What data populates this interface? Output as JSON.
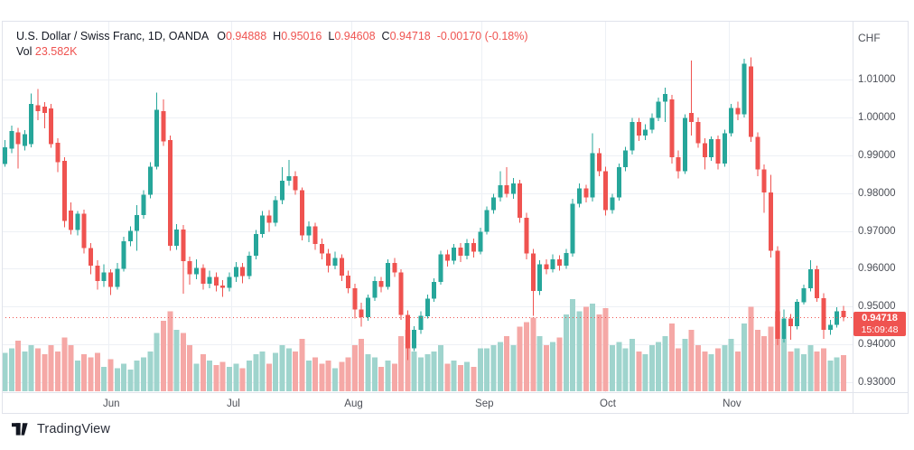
{
  "header": {
    "symbol_line": "U.S. Dollar / Swiss Franc, 1D, OANDA",
    "ohlc": [
      {
        "label": "O",
        "value": "0.94888"
      },
      {
        "label": "H",
        "value": "0.95016"
      },
      {
        "label": "L",
        "value": "0.94608"
      },
      {
        "label": "C",
        "value": "0.94718"
      }
    ],
    "change": "-0.00170 (-0.18%)",
    "vol_label": "Vol",
    "vol_value": "23.582K"
  },
  "price_axis": {
    "currency": "CHF",
    "ticks": [
      "1.01000",
      "1.00000",
      "0.99000",
      "0.98000",
      "0.97000",
      "0.96000",
      "0.95000",
      "0.94000",
      "0.93000"
    ],
    "last_price_label": "0.94718",
    "last_time_label": "15:09:48"
  },
  "time_axis": {
    "months": [
      {
        "label": "Jun",
        "index": 15.7
      },
      {
        "label": "Jul",
        "index": 34.2
      },
      {
        "label": "Aug",
        "index": 52.4
      },
      {
        "label": "Sep",
        "index": 72.2
      },
      {
        "label": "Oct",
        "index": 90.9
      },
      {
        "label": "Nov",
        "index": 109.7
      }
    ]
  },
  "footer": {
    "brand": "TradingView"
  },
  "colors": {
    "up": "#26a69a",
    "down": "#ef5350",
    "vol_up": "#9fd4cd",
    "vol_down": "#f5a8a6",
    "grid": "#edf0f5",
    "border": "#e0e3eb",
    "text": "#131722",
    "axis_text": "#4c4f57",
    "badge_bg": "#ef5350",
    "last_price_line": "#ef5350"
  },
  "chart_data": {
    "type": "candlestick_with_volume",
    "title": "U.S. Dollar / Swiss Franc",
    "interval": "1D",
    "provider": "OANDA",
    "quote_currency": "CHF",
    "ylim": [
      0.93,
      1.01
    ],
    "grid": true,
    "last_close": 0.94718,
    "last_volume_k": 23.582,
    "columns": [
      "open",
      "high",
      "low",
      "close",
      "volume_k"
    ],
    "candles": [
      [
        0.9877,
        0.994,
        0.9869,
        0.9921,
        25
      ],
      [
        0.9917,
        0.9978,
        0.9905,
        0.9964,
        28
      ],
      [
        0.996,
        0.9972,
        0.9865,
        0.9929,
        33
      ],
      [
        0.9924,
        0.9966,
        0.9912,
        0.9955,
        26
      ],
      [
        0.9929,
        1.0063,
        0.9921,
        1.0036,
        30
      ],
      [
        1.0032,
        1.0075,
        0.9993,
        1.0016,
        28
      ],
      [
        1.0028,
        1.004,
        0.9971,
        1.0012,
        24
      ],
      [
        1.0024,
        1.0035,
        0.992,
        0.9929,
        30
      ],
      [
        0.9933,
        0.9945,
        0.9855,
        0.9881,
        26
      ],
      [
        0.9885,
        0.9895,
        0.971,
        0.9726,
        35
      ],
      [
        0.9754,
        0.9775,
        0.969,
        0.9702,
        30
      ],
      [
        0.9702,
        0.9752,
        0.9688,
        0.9745,
        20
      ],
      [
        0.9745,
        0.9756,
        0.964,
        0.9655,
        24
      ],
      [
        0.9655,
        0.9668,
        0.9585,
        0.9608,
        22
      ],
      [
        0.9608,
        0.9622,
        0.9545,
        0.9568,
        25
      ],
      [
        0.9568,
        0.9612,
        0.9552,
        0.959,
        16
      ],
      [
        0.959,
        0.9598,
        0.953,
        0.9552,
        21
      ],
      [
        0.9552,
        0.9615,
        0.9545,
        0.96,
        15
      ],
      [
        0.96,
        0.9685,
        0.9592,
        0.9672,
        18
      ],
      [
        0.9672,
        0.9712,
        0.966,
        0.97,
        14
      ],
      [
        0.97,
        0.9768,
        0.9648,
        0.9742,
        20
      ],
      [
        0.9742,
        0.9808,
        0.9732,
        0.9795,
        22
      ],
      [
        0.9795,
        0.9882,
        0.9786,
        0.987,
        26
      ],
      [
        0.987,
        1.0065,
        0.9862,
        1.002,
        38
      ],
      [
        1.0016,
        1.0048,
        0.9925,
        0.9936,
        46
      ],
      [
        0.994,
        0.9952,
        0.9648,
        0.9661,
        52
      ],
      [
        0.9661,
        0.9718,
        0.965,
        0.9704,
        40
      ],
      [
        0.9704,
        0.9715,
        0.9534,
        0.962,
        38
      ],
      [
        0.962,
        0.9632,
        0.9558,
        0.9585,
        30
      ],
      [
        0.9585,
        0.9625,
        0.9572,
        0.9602,
        18
      ],
      [
        0.9602,
        0.9612,
        0.9545,
        0.956,
        24
      ],
      [
        0.956,
        0.9595,
        0.9548,
        0.9578,
        20
      ],
      [
        0.9578,
        0.959,
        0.954,
        0.9556,
        17
      ],
      [
        0.9556,
        0.957,
        0.9525,
        0.9549,
        19
      ],
      [
        0.9549,
        0.959,
        0.954,
        0.9578,
        16
      ],
      [
        0.9578,
        0.9618,
        0.9565,
        0.9604,
        18
      ],
      [
        0.9604,
        0.9615,
        0.9562,
        0.9581,
        15
      ],
      [
        0.9581,
        0.9645,
        0.9572,
        0.9634,
        20
      ],
      [
        0.9634,
        0.9702,
        0.9625,
        0.9692,
        24
      ],
      [
        0.9692,
        0.9752,
        0.9682,
        0.9741,
        26
      ],
      [
        0.9741,
        0.9755,
        0.9698,
        0.9722,
        18
      ],
      [
        0.9722,
        0.9792,
        0.9712,
        0.9781,
        25
      ],
      [
        0.9781,
        0.9868,
        0.977,
        0.9832,
        30
      ],
      [
        0.9832,
        0.9888,
        0.982,
        0.9845,
        28
      ],
      [
        0.9845,
        0.9858,
        0.9795,
        0.9808,
        26
      ],
      [
        0.9808,
        0.9815,
        0.9675,
        0.9688,
        34
      ],
      [
        0.9688,
        0.9725,
        0.967,
        0.9712,
        20
      ],
      [
        0.9712,
        0.9722,
        0.965,
        0.9665,
        22
      ],
      [
        0.9665,
        0.968,
        0.9625,
        0.964,
        18
      ],
      [
        0.964,
        0.9652,
        0.959,
        0.9608,
        20
      ],
      [
        0.9608,
        0.9645,
        0.9598,
        0.9628,
        15
      ],
      [
        0.9628,
        0.9638,
        0.9568,
        0.9582,
        19
      ],
      [
        0.9582,
        0.9595,
        0.9535,
        0.9548,
        22
      ],
      [
        0.9548,
        0.956,
        0.9468,
        0.9492,
        30
      ],
      [
        0.9492,
        0.951,
        0.9447,
        0.9472,
        34
      ],
      [
        0.9472,
        0.9532,
        0.9462,
        0.9523,
        24
      ],
      [
        0.9523,
        0.958,
        0.9515,
        0.9568,
        22
      ],
      [
        0.9568,
        0.9578,
        0.9538,
        0.9552,
        16
      ],
      [
        0.9552,
        0.9625,
        0.9545,
        0.9615,
        20
      ],
      [
        0.9615,
        0.9628,
        0.9578,
        0.959,
        18
      ],
      [
        0.959,
        0.9598,
        0.9465,
        0.9478,
        36
      ],
      [
        0.9478,
        0.949,
        0.9358,
        0.939,
        40
      ],
      [
        0.939,
        0.9448,
        0.9382,
        0.9438,
        26
      ],
      [
        0.9438,
        0.9488,
        0.9428,
        0.9475,
        22
      ],
      [
        0.9475,
        0.9532,
        0.9468,
        0.9521,
        24
      ],
      [
        0.9521,
        0.9575,
        0.9512,
        0.9565,
        26
      ],
      [
        0.9565,
        0.9648,
        0.9558,
        0.9638,
        30
      ],
      [
        0.9638,
        0.965,
        0.9605,
        0.9621,
        18
      ],
      [
        0.9621,
        0.9665,
        0.9612,
        0.9656,
        20
      ],
      [
        0.9656,
        0.9668,
        0.9618,
        0.9634,
        17
      ],
      [
        0.9634,
        0.9678,
        0.9625,
        0.9668,
        19
      ],
      [
        0.9668,
        0.968,
        0.963,
        0.9645,
        16
      ],
      [
        0.9645,
        0.9708,
        0.9638,
        0.9698,
        28
      ],
      [
        0.9698,
        0.9765,
        0.969,
        0.9755,
        28
      ],
      [
        0.9755,
        0.9798,
        0.9745,
        0.9788,
        30
      ],
      [
        0.9788,
        0.9858,
        0.9778,
        0.9821,
        32
      ],
      [
        0.9821,
        0.9868,
        0.9788,
        0.9798,
        36
      ],
      [
        0.9798,
        0.984,
        0.9785,
        0.9825,
        30
      ],
      [
        0.9825,
        0.9835,
        0.9722,
        0.9735,
        42
      ],
      [
        0.9735,
        0.9748,
        0.9625,
        0.964,
        45
      ],
      [
        0.964,
        0.9652,
        0.9476,
        0.9541,
        48
      ],
      [
        0.9541,
        0.9622,
        0.953,
        0.9612,
        36
      ],
      [
        0.9612,
        0.9625,
        0.9585,
        0.9598,
        30
      ],
      [
        0.9598,
        0.9638,
        0.959,
        0.9625,
        32
      ],
      [
        0.9625,
        0.9635,
        0.9595,
        0.9608,
        35
      ],
      [
        0.9608,
        0.9652,
        0.96,
        0.9641,
        50
      ],
      [
        0.9641,
        0.9785,
        0.9632,
        0.9772,
        60
      ],
      [
        0.9772,
        0.9825,
        0.9762,
        0.9812,
        52
      ],
      [
        0.9812,
        0.9822,
        0.9775,
        0.9788,
        55
      ],
      [
        0.9788,
        0.9958,
        0.9778,
        0.9905,
        57
      ],
      [
        0.9905,
        0.9918,
        0.9845,
        0.9858,
        50
      ],
      [
        0.9858,
        0.987,
        0.974,
        0.9755,
        54
      ],
      [
        0.9755,
        0.9798,
        0.9745,
        0.9788,
        30
      ],
      [
        0.9788,
        0.9878,
        0.978,
        0.9868,
        32
      ],
      [
        0.9868,
        0.9922,
        0.9858,
        0.9912,
        28
      ],
      [
        0.9912,
        0.9998,
        0.9902,
        0.9988,
        34
      ],
      [
        0.9988,
        0.9998,
        0.9938,
        0.9952,
        26
      ],
      [
        0.9952,
        0.9982,
        0.994,
        0.9968,
        24
      ],
      [
        0.9968,
        1.001,
        0.9958,
        0.9998,
        30
      ],
      [
        0.9998,
        1.0052,
        0.999,
        1.0042,
        32
      ],
      [
        1.0042,
        1.0078,
        0.9988,
        1.0062,
        36
      ],
      [
        1.0048,
        1.006,
        0.9878,
        0.9895,
        44
      ],
      [
        0.9895,
        0.9912,
        0.9838,
        0.9858,
        28
      ],
      [
        0.9858,
        1.0008,
        0.985,
        0.9998,
        34
      ],
      [
        1.0012,
        1.015,
        0.9952,
        0.9988,
        40
      ],
      [
        0.9988,
        1.0,
        0.992,
        0.9932,
        30
      ],
      [
        0.9932,
        0.9945,
        0.9862,
        0.9895,
        26
      ],
      [
        0.9895,
        0.995,
        0.9885,
        0.9942,
        24
      ],
      [
        0.9942,
        0.9952,
        0.9862,
        0.9878,
        28
      ],
      [
        0.9878,
        0.9968,
        0.987,
        0.9958,
        30
      ],
      [
        0.9958,
        1.0035,
        0.995,
        1.0025,
        34
      ],
      [
        1.0025,
        1.0042,
        0.9992,
        1.0008,
        26
      ],
      [
        1.0008,
        1.0155,
        1.0,
        1.0142,
        44
      ],
      [
        1.0135,
        1.0158,
        0.9935,
        0.9948,
        55
      ],
      [
        0.9948,
        0.996,
        0.9845,
        0.9862,
        40
      ],
      [
        0.9862,
        0.9875,
        0.9748,
        0.9802,
        36
      ],
      [
        0.9802,
        0.9848,
        0.963,
        0.9648,
        42
      ],
      [
        0.9648,
        0.966,
        0.9398,
        0.9415,
        52
      ],
      [
        0.9415,
        0.9492,
        0.9405,
        0.9468,
        34
      ],
      [
        0.9468,
        0.948,
        0.9412,
        0.9448,
        26
      ],
      [
        0.9448,
        0.952,
        0.944,
        0.9512,
        28
      ],
      [
        0.9512,
        0.9558,
        0.9505,
        0.9548,
        24
      ],
      [
        0.9548,
        0.9622,
        0.954,
        0.9598,
        30
      ],
      [
        0.9598,
        0.9608,
        0.9512,
        0.9522,
        26
      ],
      [
        0.9522,
        0.9535,
        0.9415,
        0.9438,
        28
      ],
      [
        0.9438,
        0.9465,
        0.9425,
        0.9452,
        20
      ],
      [
        0.9452,
        0.9498,
        0.9445,
        0.9488,
        22
      ],
      [
        0.94888,
        0.95016,
        0.94608,
        0.94718,
        23.582
      ]
    ]
  }
}
